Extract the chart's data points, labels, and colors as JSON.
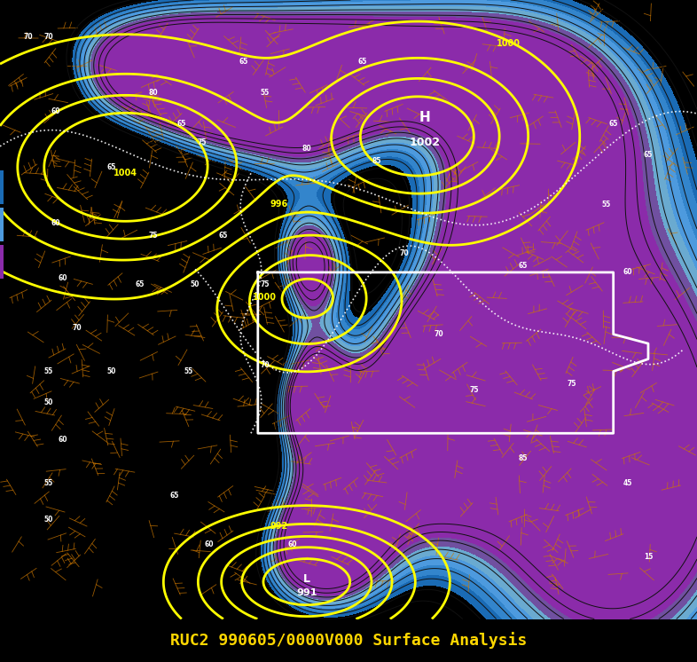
{
  "title": "RUC2 990605/0000V000 Surface Analysis",
  "title_color": "#FFD700",
  "title_fontsize": 13,
  "background_color": "#000000",
  "figsize": [
    7.86,
    7.46
  ],
  "dpi": 100,
  "mslp_contour_color": "#FFFF00",
  "dew_levels": [
    -10,
    52,
    57,
    62,
    67,
    72,
    77,
    120
  ],
  "dew_colors": [
    "#000000",
    "#1A6BB5",
    "#3385CC",
    "#4D9ADE",
    "#6AAAD0",
    "#7050A0",
    "#8B2BAA"
  ],
  "mslp_levels": [
    988,
    990,
    992,
    994,
    996,
    998,
    1000,
    1002,
    1004,
    1006
  ],
  "dp_contour_levels": [
    45,
    50,
    55,
    60,
    65,
    70,
    75,
    80,
    85
  ],
  "orange_color": "#CC7700"
}
